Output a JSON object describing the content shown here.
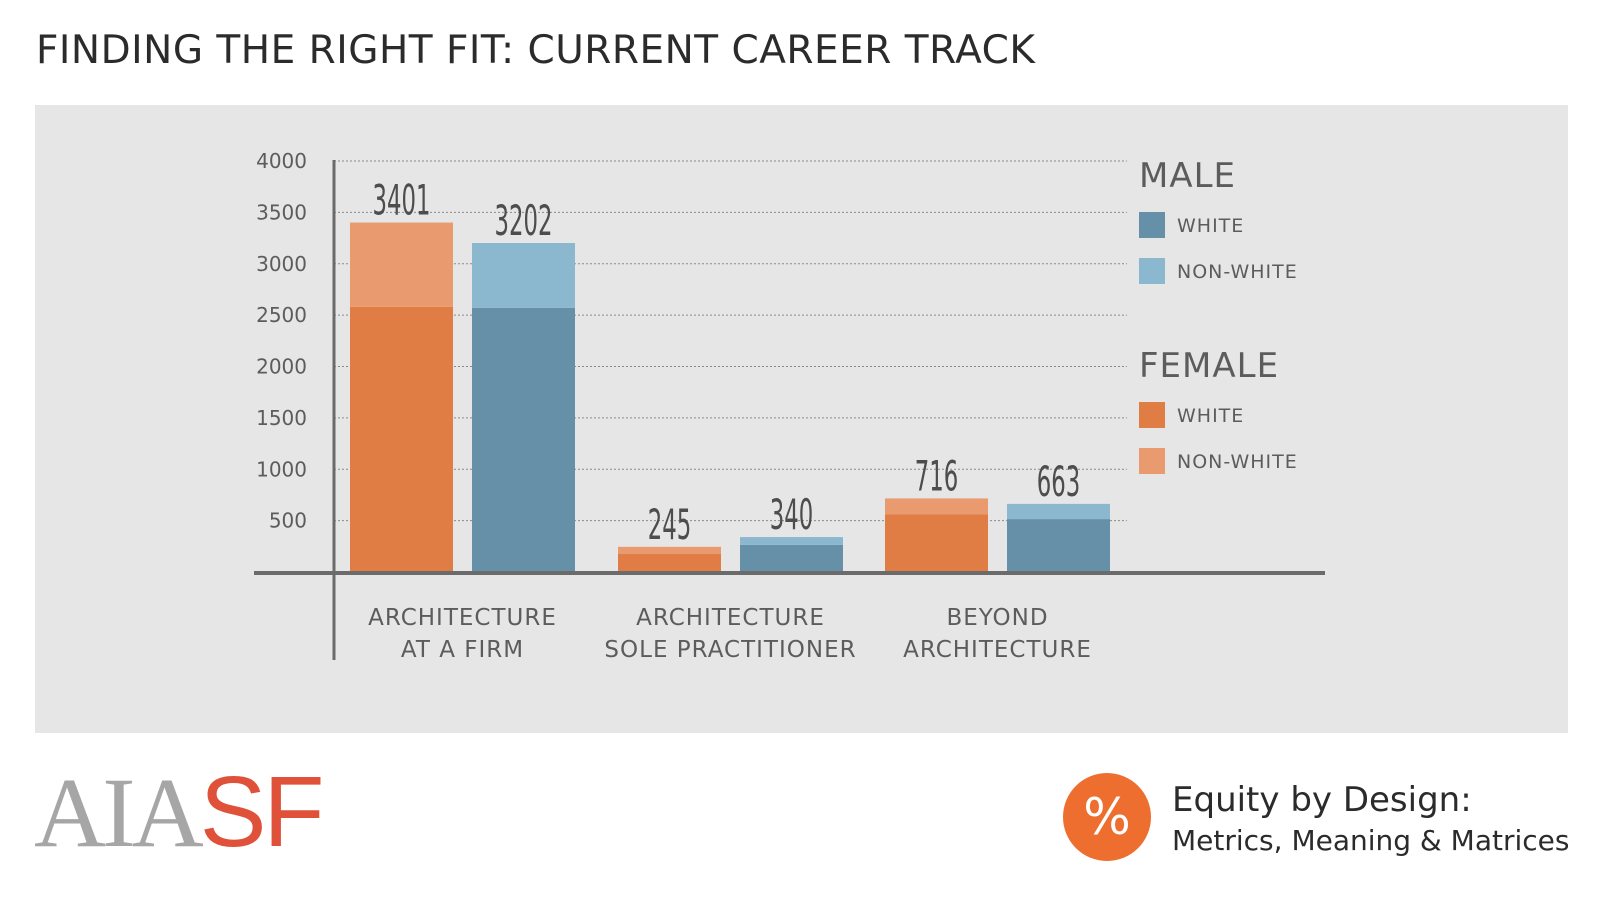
{
  "page": {
    "title": "FINDING THE RIGHT FIT: CURRENT CAREER TRACK"
  },
  "chart_data": {
    "type": "bar",
    "title": "FINDING THE RIGHT FIT: CURRENT CAREER TRACK",
    "ylim": [
      0,
      4000
    ],
    "yticks": [
      500,
      1000,
      1500,
      2000,
      2500,
      3000,
      3500,
      4000
    ],
    "ytick_labels": [
      "500",
      "1000",
      "1500",
      "2000",
      "2500",
      "3000",
      "3500",
      "4000"
    ],
    "grid": true,
    "categories": [
      {
        "line1": "ARCHITECTURE",
        "line2": "AT A  FIRM"
      },
      {
        "line1": "ARCHITECTURE",
        "line2": "SOLE PRACTITIONER"
      },
      {
        "line1": "BEYOND",
        "line2": "ARCHITECTURE"
      }
    ],
    "groups": [
      {
        "name": "FEMALE",
        "totals": [
          "3401",
          "245",
          "716"
        ],
        "white": [
          2580,
          175,
          560
        ],
        "non_white": [
          821,
          70,
          156
        ]
      },
      {
        "name": "MALE",
        "totals": [
          "3202",
          "340",
          "663"
        ],
        "white": [
          2570,
          265,
          515
        ],
        "non_white": [
          632,
          75,
          148
        ]
      }
    ],
    "legend": {
      "male_heading": "MALE",
      "female_heading": "FEMALE",
      "white_label": "WHITE",
      "non_white_label": "NON-WHITE"
    },
    "colors": {
      "female_white": "#e07d45",
      "female_non_white": "#e99a6e",
      "male_white": "#668fa8",
      "male_non_white": "#8bb8cf",
      "axis": "#6b6b6b",
      "grid": "#8a8a8a",
      "text": "#5c5c5c",
      "value_text": "#4d4d4d"
    }
  },
  "logo": {
    "aia": "AIA",
    "sf": "SF"
  },
  "badge": {
    "symbol": "%",
    "title": "Equity by Design:",
    "subtitle": "Metrics, Meaning & Matrices"
  }
}
